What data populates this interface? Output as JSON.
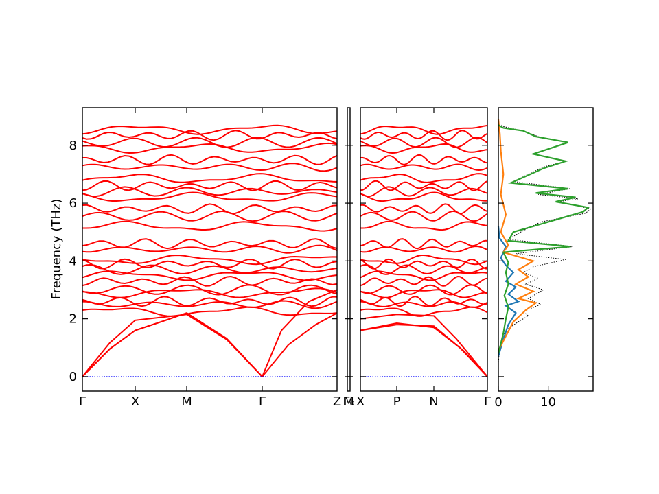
{
  "chart_data": [
    {
      "type": "line",
      "ylabel": "Frequency (THz)",
      "ylim": [
        -0.5,
        9.3
      ],
      "yticks": [
        0,
        2,
        4,
        6,
        8
      ],
      "xtick_labels": [
        "Γ",
        "X",
        "M",
        "Γ",
        "Z",
        "Γ₀",
        "M",
        "X",
        "P",
        "N",
        "Γ"
      ],
      "series_color": "#ff0000",
      "segments": [
        {
          "path": "Γ-X-M-Γ-Z",
          "start": "Γ",
          "end": "Z"
        },
        {
          "path": "Z₀-M",
          "start": "Z₀",
          "end": "M"
        },
        {
          "path": "X-P-N-Γ",
          "start": "X",
          "end": "Γ"
        }
      ],
      "acoustic_branches_at_X_THz": [
        1.6,
        1.6,
        1.95
      ],
      "acoustic_branches_at_M_THz": [
        2.2,
        2.2,
        2.15
      ],
      "optical_band_levels_THz": [
        2.25,
        2.5,
        2.6,
        2.9,
        3.0,
        3.3,
        3.5,
        3.7,
        3.9,
        4.05,
        4.4,
        4.6,
        5.2,
        5.55,
        5.8,
        6.2,
        6.4,
        6.6,
        6.85,
        7.25,
        7.5,
        7.9,
        8.1,
        8.35,
        8.55
      ]
    },
    {
      "type": "line",
      "title": "",
      "xlabel": "",
      "xticks": [
        0,
        10
      ],
      "xlim": [
        0,
        19
      ],
      "ylim": [
        -0.5,
        9.3
      ],
      "series": [
        {
          "color": "#000000",
          "style": "dotted",
          "points": [
            [
              0,
              0.5
            ],
            [
              0.5,
              1.2
            ],
            [
              1.5,
              1.6
            ],
            [
              4,
              1.9
            ],
            [
              6,
              2.1
            ],
            [
              5,
              2.25
            ],
            [
              8.5,
              2.5
            ],
            [
              6,
              2.7
            ],
            [
              9,
              3.0
            ],
            [
              5.5,
              3.2
            ],
            [
              8,
              3.4
            ],
            [
              5,
              3.6
            ],
            [
              7,
              3.8
            ],
            [
              13.5,
              4.05
            ],
            [
              3.5,
              4.25
            ],
            [
              15,
              4.5
            ],
            [
              2,
              4.75
            ],
            [
              5,
              5.05
            ],
            [
              8.5,
              5.35
            ],
            [
              17.5,
              5.65
            ],
            [
              18.5,
              5.8
            ],
            [
              12,
              6.05
            ],
            [
              16,
              6.15
            ],
            [
              8,
              6.3
            ],
            [
              14.5,
              6.5
            ],
            [
              3,
              6.75
            ],
            [
              9,
              7.25
            ],
            [
              13.5,
              7.45
            ],
            [
              7,
              7.7
            ],
            [
              14,
              8.1
            ],
            [
              8,
              8.3
            ],
            [
              5,
              8.5
            ],
            [
              1,
              8.65
            ],
            [
              0,
              8.8
            ]
          ]
        },
        {
          "color": "#1f77b4",
          "style": "solid",
          "points": [
            [
              0,
              0.7
            ],
            [
              1,
              1.3
            ],
            [
              2,
              1.8
            ],
            [
              3.5,
              2.2
            ],
            [
              1.5,
              2.45
            ],
            [
              4,
              2.6
            ],
            [
              2,
              2.85
            ],
            [
              3.5,
              3.1
            ],
            [
              1.5,
              3.3
            ],
            [
              3,
              3.6
            ],
            [
              1.5,
              3.85
            ],
            [
              0.5,
              4.1
            ],
            [
              1.5,
              4.5
            ],
            [
              0.2,
              4.8
            ],
            [
              0,
              5.2
            ]
          ]
        },
        {
          "color": "#ff7f0e",
          "style": "solid",
          "points": [
            [
              0,
              0.9
            ],
            [
              1.5,
              1.4
            ],
            [
              3,
              1.9
            ],
            [
              5.5,
              2.3
            ],
            [
              7.5,
              2.55
            ],
            [
              4,
              2.7
            ],
            [
              7,
              2.95
            ],
            [
              3.5,
              3.2
            ],
            [
              6,
              3.45
            ],
            [
              4,
              3.7
            ],
            [
              7,
              4.0
            ],
            [
              1,
              4.3
            ],
            [
              2,
              4.55
            ],
            [
              0.5,
              5.0
            ],
            [
              1.5,
              5.6
            ],
            [
              0.5,
              6.3
            ],
            [
              1,
              7.0
            ],
            [
              0.5,
              7.8
            ],
            [
              0.3,
              8.4
            ],
            [
              0,
              8.9
            ]
          ]
        },
        {
          "color": "#2ca02c",
          "style": "solid",
          "points": [
            [
              0,
              0.8
            ],
            [
              1,
              1.5
            ],
            [
              1.5,
              2.0
            ],
            [
              2,
              2.4
            ],
            [
              1.2,
              2.8
            ],
            [
              2,
              3.2
            ],
            [
              1.5,
              3.6
            ],
            [
              2,
              3.95
            ],
            [
              1,
              4.3
            ],
            [
              14.5,
              4.5
            ],
            [
              2,
              4.7
            ],
            [
              3,
              5.0
            ],
            [
              9,
              5.3
            ],
            [
              17,
              5.7
            ],
            [
              18,
              5.85
            ],
            [
              11.5,
              6.05
            ],
            [
              15.5,
              6.2
            ],
            [
              7.5,
              6.35
            ],
            [
              14,
              6.5
            ],
            [
              2.5,
              6.7
            ],
            [
              9,
              7.2
            ],
            [
              13.5,
              7.45
            ],
            [
              7,
              7.7
            ],
            [
              14,
              8.1
            ],
            [
              7.5,
              8.3
            ],
            [
              5,
              8.5
            ],
            [
              1,
              8.6
            ],
            [
              0,
              8.7
            ]
          ]
        }
      ]
    }
  ]
}
